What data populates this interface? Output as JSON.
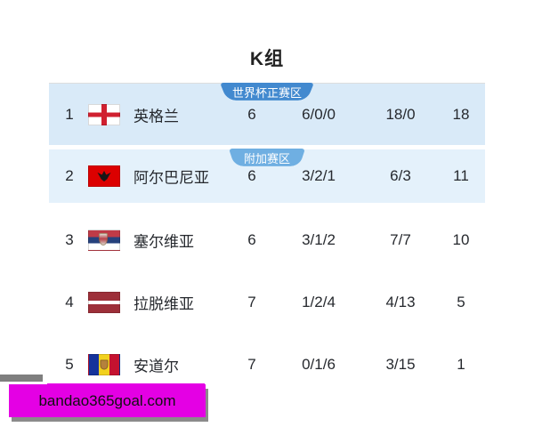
{
  "title": "K组",
  "table": {
    "badges": {
      "world_cup": "世界杯正赛区",
      "playoff": "附加赛区"
    },
    "rows": [
      {
        "rank": "1",
        "team": "英格兰",
        "flag": "england-flag",
        "played": "6",
        "record": "6/0/0",
        "goals": "18/0",
        "points": "18"
      },
      {
        "rank": "2",
        "team": "阿尔巴尼亚",
        "flag": "albania-flag",
        "played": "6",
        "record": "3/2/1",
        "goals": "6/3",
        "points": "11"
      },
      {
        "rank": "3",
        "team": "塞尔维亚",
        "flag": "serbia-flag",
        "played": "6",
        "record": "3/1/2",
        "goals": "7/7",
        "points": "10"
      },
      {
        "rank": "4",
        "team": "拉脱维亚",
        "flag": "latvia-flag",
        "played": "7",
        "record": "1/2/4",
        "goals": "4/13",
        "points": "5"
      },
      {
        "rank": "5",
        "team": "安道尔",
        "flag": "andorra-flag",
        "played": "7",
        "record": "0/1/6",
        "goals": "3/15",
        "points": "1"
      }
    ]
  },
  "watermark": {
    "text": "bandao365goal.com"
  },
  "colors": {
    "world_cup_badge": "#4289cf",
    "playoff_badge": "#6fafe2",
    "row1_highlight": "#d9eaf8",
    "row2_highlight": "#e4f1fb",
    "watermark_magenta": "#e400e4"
  }
}
